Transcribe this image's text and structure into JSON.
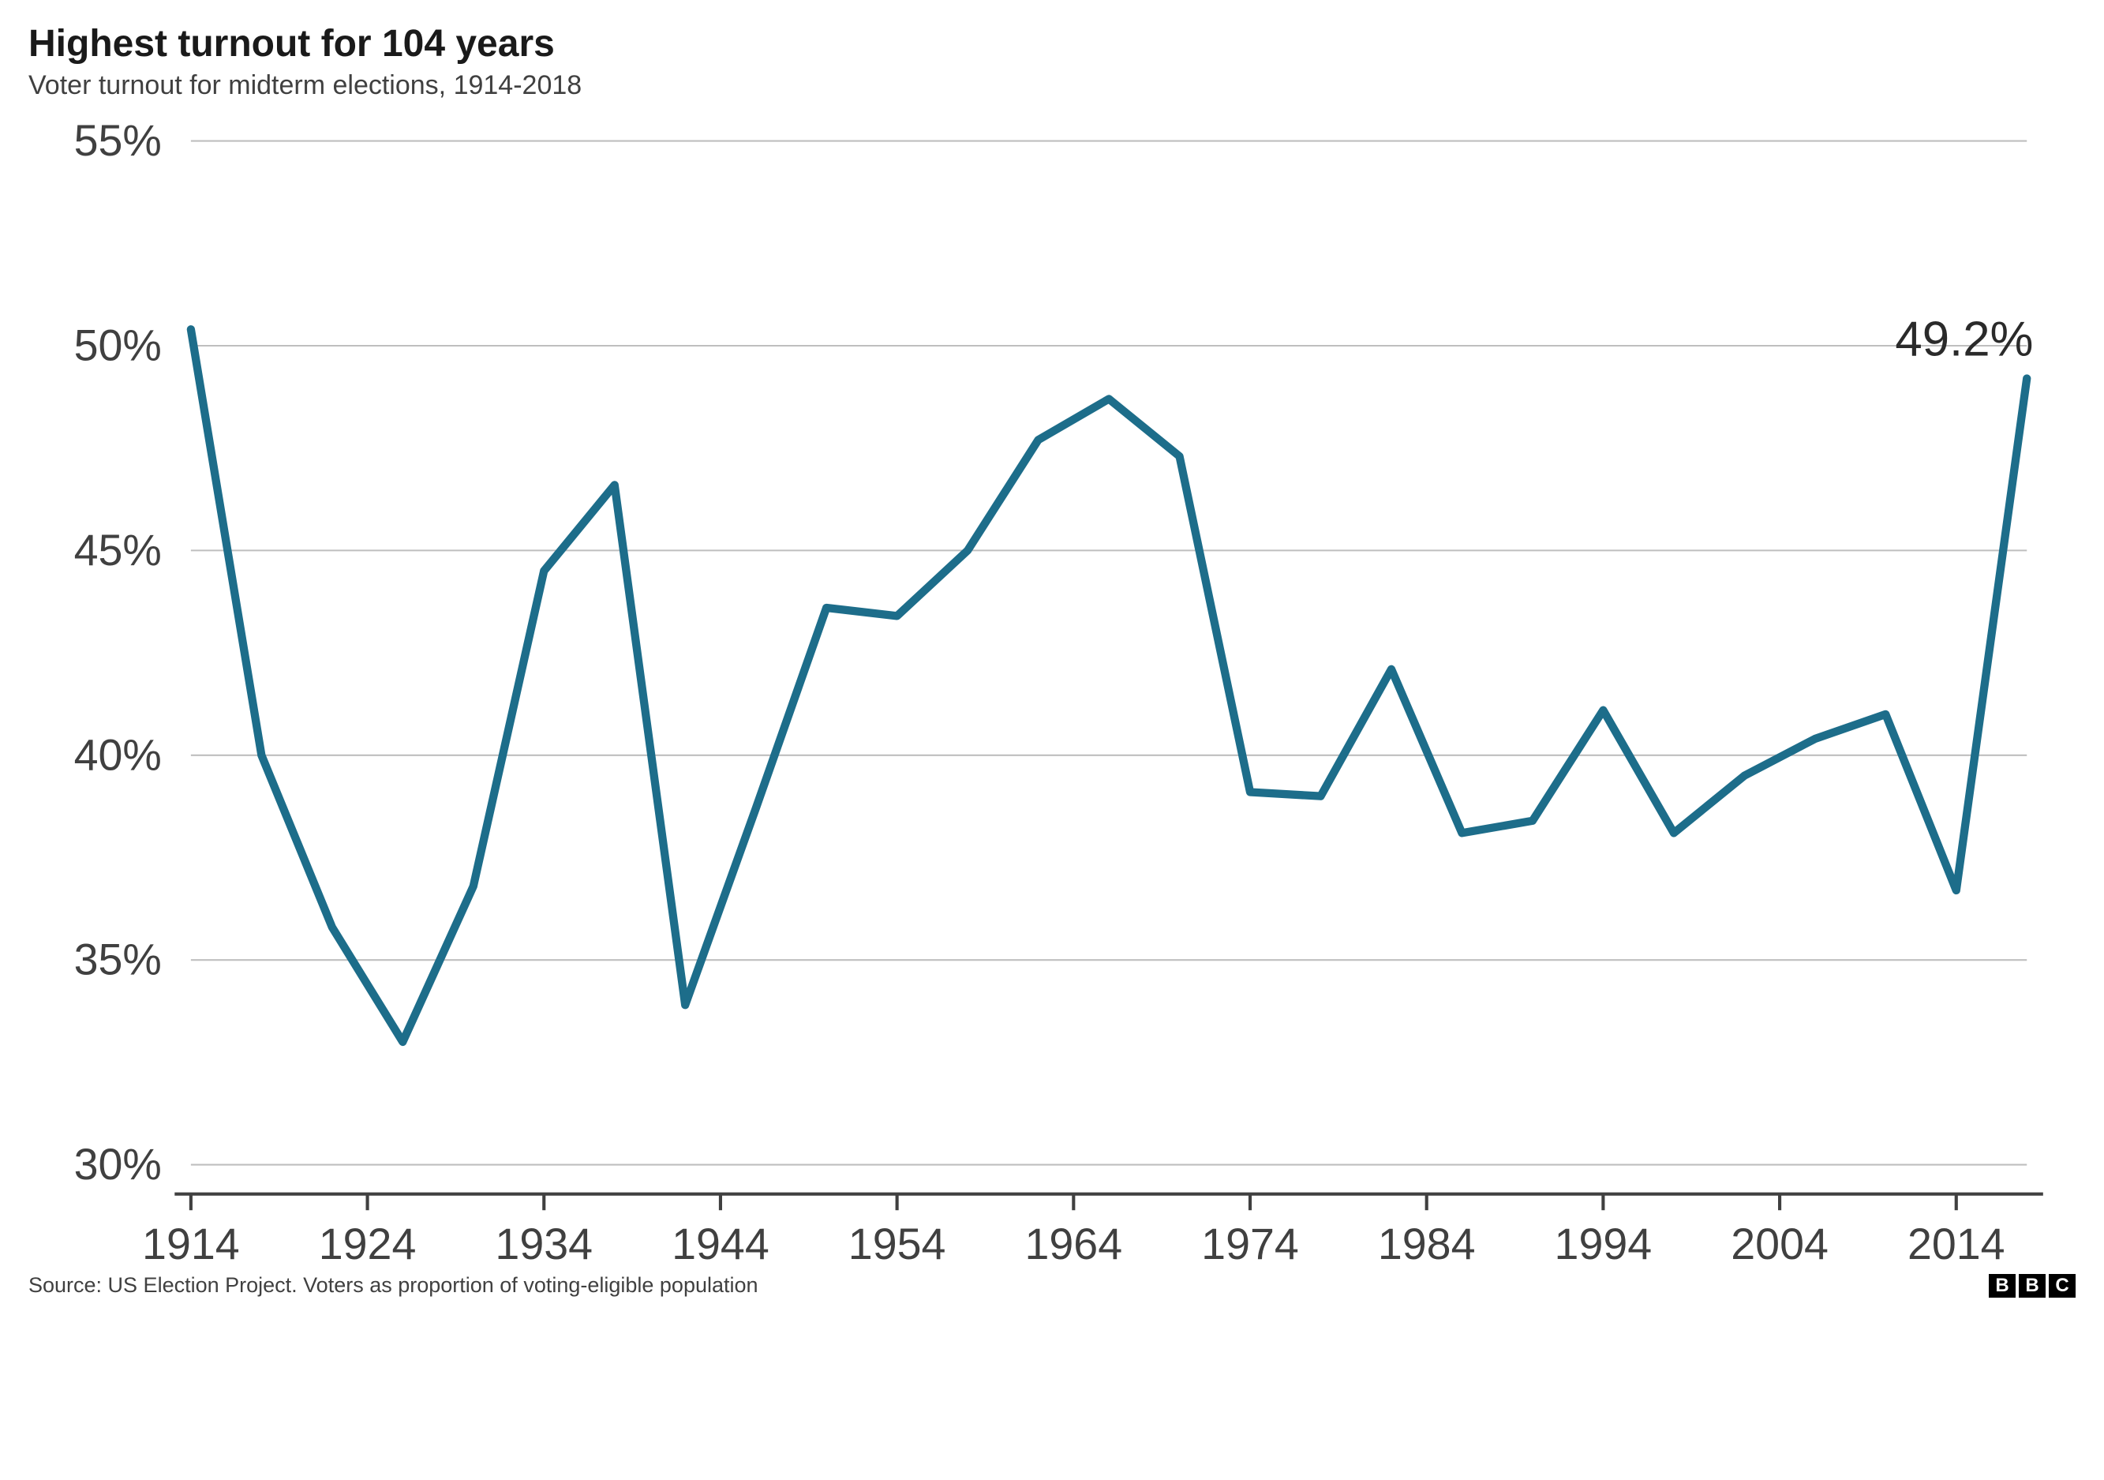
{
  "title": "Highest turnout for 104 years",
  "subtitle": "Voter turnout for midterm elections, 1914-2018",
  "source": "Source: US Election Project. Voters as proportion of voting-eligible population",
  "chart": {
    "type": "line",
    "line_color": "#1d6d8a",
    "line_width": 5,
    "grid_color": "#bfbfbf",
    "axis_color": "#404040",
    "background_color": "#ffffff",
    "label_color": "#404040",
    "label_fontsize": 27,
    "annotation_label": "49.2%",
    "annotation_fontsize": 30,
    "annotation_color": "#2a2a2a",
    "y": {
      "min": 30,
      "max": 55,
      "step": 5,
      "suffix": "%",
      "ticks": [
        30,
        35,
        40,
        45,
        50,
        55
      ]
    },
    "x": {
      "min": 1914,
      "max": 2018,
      "ticks": [
        1914,
        1924,
        1934,
        1944,
        1954,
        1964,
        1974,
        1984,
        1994,
        2004,
        2014
      ]
    },
    "data": [
      {
        "year": 1914,
        "v": 50.4
      },
      {
        "year": 1918,
        "v": 40.0
      },
      {
        "year": 1922,
        "v": 35.8
      },
      {
        "year": 1926,
        "v": 33.0
      },
      {
        "year": 1930,
        "v": 36.8
      },
      {
        "year": 1934,
        "v": 44.5
      },
      {
        "year": 1938,
        "v": 46.6
      },
      {
        "year": 1942,
        "v": 33.9
      },
      {
        "year": 1946,
        "v": 38.7
      },
      {
        "year": 1950,
        "v": 43.6
      },
      {
        "year": 1954,
        "v": 43.4
      },
      {
        "year": 1958,
        "v": 45.0
      },
      {
        "year": 1962,
        "v": 47.7
      },
      {
        "year": 1966,
        "v": 48.7
      },
      {
        "year": 1970,
        "v": 47.3
      },
      {
        "year": 1974,
        "v": 39.1
      },
      {
        "year": 1978,
        "v": 39.0
      },
      {
        "year": 1982,
        "v": 42.1
      },
      {
        "year": 1986,
        "v": 38.1
      },
      {
        "year": 1990,
        "v": 38.4
      },
      {
        "year": 1994,
        "v": 41.1
      },
      {
        "year": 1998,
        "v": 38.1
      },
      {
        "year": 2002,
        "v": 39.5
      },
      {
        "year": 2006,
        "v": 40.4
      },
      {
        "year": 2010,
        "v": 41.0
      },
      {
        "year": 2014,
        "v": 36.7
      },
      {
        "year": 2018,
        "v": 49.2
      }
    ]
  },
  "logo": [
    "B",
    "B",
    "C"
  ]
}
